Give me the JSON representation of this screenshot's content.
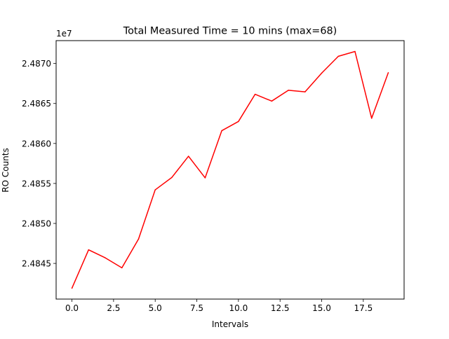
{
  "chart_data": {
    "type": "line",
    "title": "Total Measured Time = 10 mins (max=68)",
    "xlabel": "Intervals",
    "ylabel": "RO Counts",
    "offset_label": "1e7",
    "x": [
      0,
      1,
      2,
      3,
      4,
      5,
      6,
      7,
      8,
      9,
      10,
      11,
      12,
      13,
      14,
      15,
      16,
      17,
      18,
      19
    ],
    "series": [
      {
        "color": "#ff0000",
        "values": [
          24841900,
          24846700,
          24845700,
          24844450,
          24848050,
          24854200,
          24855750,
          24858400,
          24855700,
          24861600,
          24862750,
          24866150,
          24865300,
          24866650,
          24866450,
          24868800,
          24870900,
          24871500,
          24863150,
          24868850
        ]
      }
    ],
    "xlim": [
      -0.95,
      19.95
    ],
    "ylim": [
      24840540,
      24872860
    ],
    "xticks": [
      0,
      2.5,
      5,
      7.5,
      10,
      12.5,
      15,
      17.5
    ],
    "xtick_labels": [
      "0.0",
      "2.5",
      "5.0",
      "7.5",
      "10.0",
      "12.5",
      "15.0",
      "17.5"
    ],
    "yticks": [
      24845000,
      24850000,
      24855000,
      24860000,
      24865000,
      24870000
    ],
    "ytick_labels": [
      "2.4845",
      "2.4850",
      "2.4855",
      "2.4860",
      "2.4865",
      "2.4870"
    ],
    "grid": false,
    "legend": "none"
  }
}
